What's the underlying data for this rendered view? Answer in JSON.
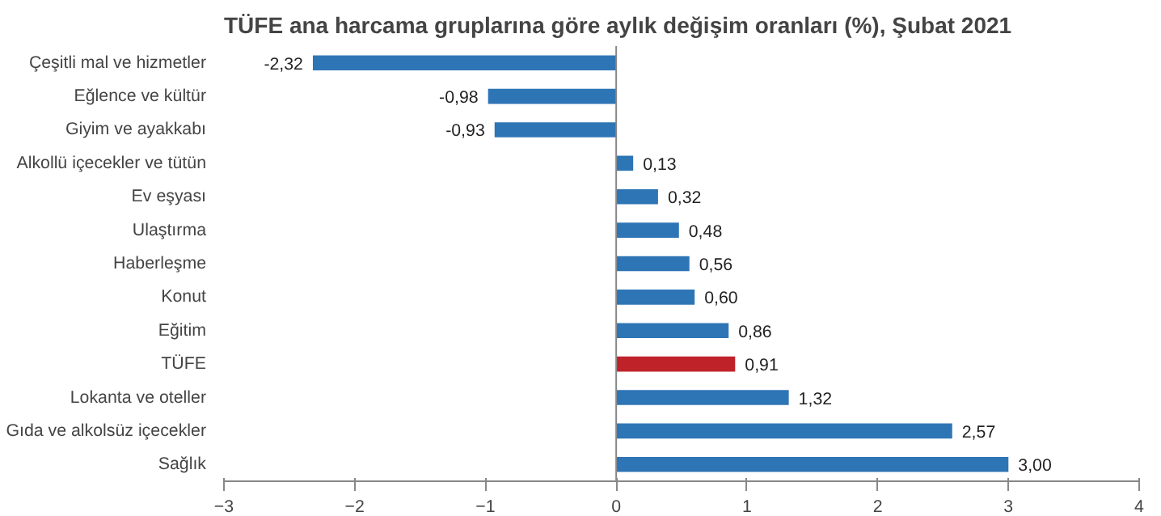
{
  "chart_data": {
    "type": "bar",
    "orientation": "horizontal",
    "title": "TÜFE ana harcama gruplarına göre aylık değişim oranları (%), Şubat 2021",
    "categories": [
      "Çeşitli mal ve hizmetler",
      "Eğlence ve kültür",
      "Giyim ve ayakkabı",
      "Alkollü içecekler ve tütün",
      "Ev eşyası",
      "Ulaştırma",
      "Haberleşme",
      "Konut",
      "Eğitim",
      "TÜFE",
      "Lokanta ve oteller",
      "Gıda ve alkolsüz içecekler",
      "Sağlık"
    ],
    "values": [
      -2.32,
      -0.98,
      -0.93,
      0.13,
      0.32,
      0.48,
      0.56,
      0.6,
      0.86,
      0.91,
      1.32,
      2.57,
      3.0
    ],
    "value_labels": [
      "-2,32",
      "-0,98",
      "-0,93",
      "0,13",
      "0,32",
      "0,48",
      "0,56",
      "0,60",
      "0,86",
      "0,91",
      "1,32",
      "2,57",
      "3,00"
    ],
    "colors": [
      "#2e75b6",
      "#2e75b6",
      "#2e75b6",
      "#2e75b6",
      "#2e75b6",
      "#2e75b6",
      "#2e75b6",
      "#2e75b6",
      "#2e75b6",
      "#c0222a",
      "#2e75b6",
      "#2e75b6",
      "#2e75b6"
    ],
    "xlim": [
      -3,
      4
    ],
    "xticks": [
      -3,
      -2,
      -1,
      0,
      1,
      2,
      3,
      4
    ]
  }
}
